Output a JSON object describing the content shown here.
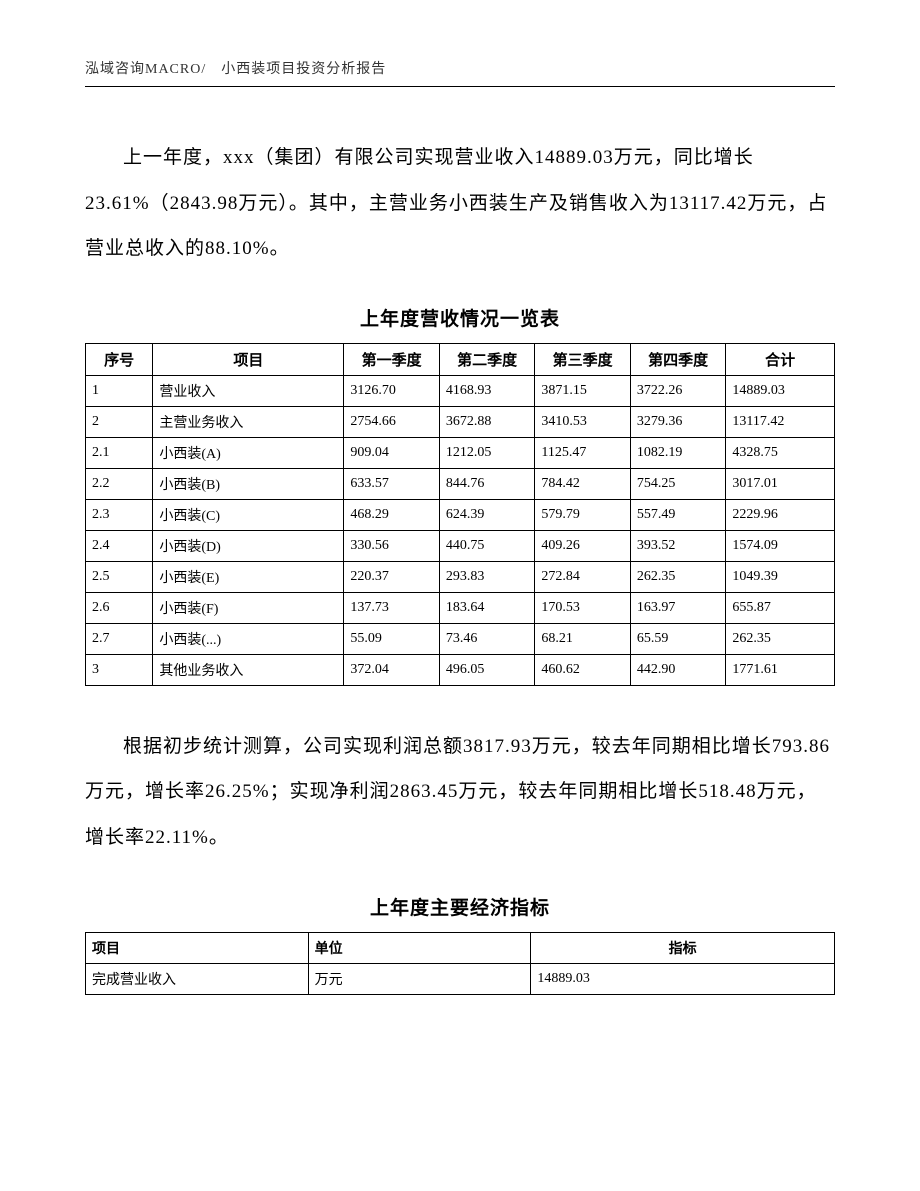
{
  "header": "泓域咨询MACRO/　小西装项目投资分析报告",
  "paragraph1": "上一年度，xxx（集团）有限公司实现营业收入14889.03万元，同比增长23.61%（2843.98万元）。其中，主营业务小西装生产及销售收入为13117.42万元，占营业总收入的88.10%。",
  "table1_title": "上年度营收情况一览表",
  "table1": {
    "columns": [
      "序号",
      "项目",
      "第一季度",
      "第二季度",
      "第三季度",
      "第四季度",
      "合计"
    ],
    "rows": [
      [
        "1",
        "营业收入",
        "3126.70",
        "4168.93",
        "3871.15",
        "3722.26",
        "14889.03"
      ],
      [
        "2",
        "主营业务收入",
        "2754.66",
        "3672.88",
        "3410.53",
        "3279.36",
        "13117.42"
      ],
      [
        "2.1",
        "小西装(A)",
        "909.04",
        "1212.05",
        "1125.47",
        "1082.19",
        "4328.75"
      ],
      [
        "2.2",
        "小西装(B)",
        "633.57",
        "844.76",
        "784.42",
        "754.25",
        "3017.01"
      ],
      [
        "2.3",
        "小西装(C)",
        "468.29",
        "624.39",
        "579.79",
        "557.49",
        "2229.96"
      ],
      [
        "2.4",
        "小西装(D)",
        "330.56",
        "440.75",
        "409.26",
        "393.52",
        "1574.09"
      ],
      [
        "2.5",
        "小西装(E)",
        "220.37",
        "293.83",
        "272.84",
        "262.35",
        "1049.39"
      ],
      [
        "2.6",
        "小西装(F)",
        "137.73",
        "183.64",
        "170.53",
        "163.97",
        "655.87"
      ],
      [
        "2.7",
        "小西装(...)",
        "55.09",
        "73.46",
        "68.21",
        "65.59",
        "262.35"
      ],
      [
        "3",
        "其他业务收入",
        "372.04",
        "496.05",
        "460.62",
        "442.90",
        "1771.61"
      ]
    ]
  },
  "paragraph2": "根据初步统计测算，公司实现利润总额3817.93万元，较去年同期相比增长793.86万元，增长率26.25%；实现净利润2863.45万元，较去年同期相比增长518.48万元，增长率22.11%。",
  "table2_title": "上年度主要经济指标",
  "table2": {
    "columns": [
      "项目",
      "单位",
      "指标"
    ],
    "rows": [
      [
        "完成营业收入",
        "万元",
        "14889.03"
      ]
    ]
  }
}
